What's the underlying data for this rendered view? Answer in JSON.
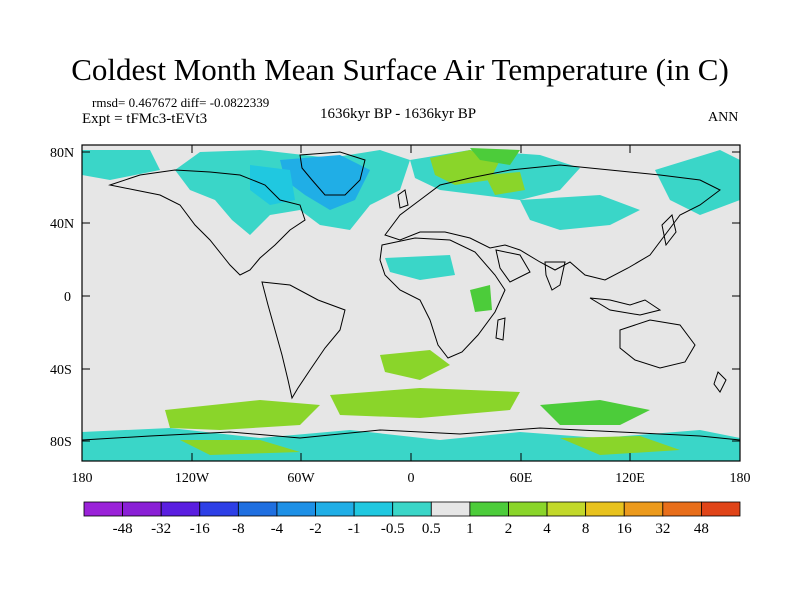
{
  "header": {
    "title": "Coldest Month Mean Surface Air Temperature (in C)",
    "stats": "rmsd= 0.467672 diff= -0.0822339",
    "experiment": "Expt = tFMc3-tEVt3",
    "period": "1636kyr BP - 1636kyr BP",
    "season": "ANN"
  },
  "axes": {
    "lat_labels": [
      "80N",
      "40N",
      "0",
      "40S",
      "80S"
    ],
    "lon_labels": [
      "180",
      "120W",
      "60W",
      "0",
      "60E",
      "120E",
      "180"
    ]
  },
  "colorbar": {
    "labels": [
      "-48",
      "-32",
      "-16",
      "-8",
      "-4",
      "-2",
      "-1",
      "-0.5",
      "0.5",
      "1",
      "2",
      "4",
      "8",
      "16",
      "32",
      "48"
    ],
    "colors": [
      "#8a1fd6",
      "#5a1ee0",
      "#2d3fe6",
      "#1f6fe0",
      "#1e90e6",
      "#20aee6",
      "#20c8e0",
      "#3ad6c8",
      "#e6e6e6",
      "#4ccc3a",
      "#8ad52a",
      "#c2d82a",
      "#e8c21e",
      "#ec9a1c",
      "#e86e1a",
      "#e04418"
    ]
  },
  "map_colors": {
    "background": "#e6e6e6",
    "coast": "#000000"
  }
}
